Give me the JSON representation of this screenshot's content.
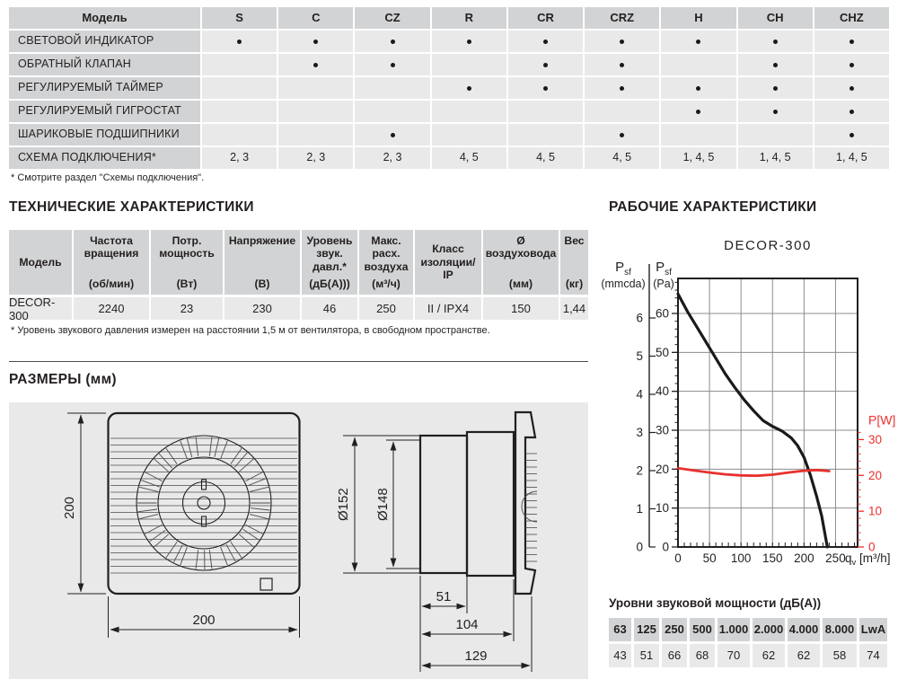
{
  "features_table": {
    "model_header": "Модель",
    "columns": [
      "S",
      "C",
      "CZ",
      "R",
      "CR",
      "CRZ",
      "H",
      "CH",
      "CHZ"
    ],
    "rows": [
      {
        "label": "СВЕТОВОЙ ИНДИКАТОР",
        "cells": [
          "•",
          "•",
          "•",
          "•",
          "•",
          "•",
          "•",
          "•",
          "•"
        ]
      },
      {
        "label": "ОБРАТНЫЙ КЛАПАН",
        "cells": [
          "",
          "•",
          "•",
          "",
          "•",
          "•",
          "",
          "•",
          "•"
        ]
      },
      {
        "label": "РЕГУЛИРУЕМЫЙ ТАЙМЕР",
        "cells": [
          "",
          "",
          "",
          "•",
          "•",
          "•",
          "•",
          "•",
          "•"
        ]
      },
      {
        "label": "РЕГУЛИРУЕМЫЙ ГИГРОСТАТ",
        "cells": [
          "",
          "",
          "",
          "",
          "",
          "",
          "•",
          "•",
          "•"
        ]
      },
      {
        "label": "ШАРИКОВЫЕ ПОДШИПНИКИ",
        "cells": [
          "",
          "",
          "•",
          "",
          "",
          "•",
          "",
          "",
          "•"
        ]
      },
      {
        "label": "СХЕМА ПОДКЛЮЧЕНИЯ*",
        "cells": [
          "2, 3",
          "2, 3",
          "2, 3",
          "4, 5",
          "4, 5",
          "4, 5",
          "1, 4, 5",
          "1, 4, 5",
          "1, 4, 5"
        ]
      }
    ],
    "footnote": "* Смотрите раздел \"Схемы подключения\"."
  },
  "tech": {
    "title": "ТЕХНИЧЕСКИЕ ХАРАКТЕРИСТИКИ",
    "headers": [
      {
        "name": "Модель",
        "unit": ""
      },
      {
        "name": "Частота вращения",
        "unit": "(об/мин)"
      },
      {
        "name": "Потр. мощность",
        "unit": "(Вт)"
      },
      {
        "name": "Напряжение",
        "unit": "(В)"
      },
      {
        "name": "Уровень звук. давл.*",
        "unit": "(дБ(А)))"
      },
      {
        "name": "Макс. расх. воздуха",
        "unit": "(м³/ч)"
      },
      {
        "name": "Класс изоляции/ IP",
        "unit": ""
      },
      {
        "name": "Ø воздуховода",
        "unit": "(мм)"
      },
      {
        "name": "Вес",
        "unit": "(кг)"
      }
    ],
    "row": [
      "DECOR-300",
      "2240",
      "23",
      "230",
      "46",
      "250",
      "II / IPX4",
      "150",
      "1,44"
    ],
    "footnote": "* Уровень звукового давления измерен на расстоянии 1,5 м от вентилятора, в свободном пространстве."
  },
  "dimensions": {
    "title": "РАЗМЕРЫ (мм)",
    "labels": {
      "height": "200",
      "width": "200",
      "d_outer": "Ø152",
      "d_inner": "Ø148",
      "depth1": "51",
      "depth2": "104",
      "depth3": "129"
    }
  },
  "performance": {
    "title": "РАБОЧИЕ ХАРАКТЕРИСТИКИ",
    "sound_title": "Уровни звуковой мощности (дБ(А))",
    "sound_freqs": [
      "63",
      "125",
      "250",
      "500",
      "1.000",
      "2.000",
      "4.000",
      "8.000",
      "LwA"
    ],
    "sound_values": [
      "43",
      "51",
      "66",
      "68",
      "70",
      "62",
      "62",
      "58",
      "74"
    ]
  },
  "chart_data": {
    "type": "line",
    "title": "DECOR-300",
    "colors": {
      "pressure": "#1a1a1a",
      "power": "#e8312e",
      "grid": "#8c8c8c",
      "axis": "#231f20"
    },
    "x_axis": {
      "label_main": "q",
      "label_sub": "v",
      "label_unit": "[m³/h]",
      "min": 0,
      "max": 285,
      "major_ticks": [
        0,
        50,
        100,
        150,
        200,
        250
      ],
      "minor_step": 10
    },
    "y_left_outer": {
      "label_main": "P",
      "label_sub": "sf",
      "label_unit": "(mmcda)",
      "ticks": [
        0,
        1,
        2,
        3,
        4,
        5,
        6
      ],
      "pa_per_unit": 9.807
    },
    "y_left": {
      "label_main": "P",
      "label_sub": "sf",
      "label_unit": "(Pa)",
      "min": 0,
      "max": 69,
      "major_ticks": [
        0,
        10,
        20,
        30,
        40,
        50,
        60
      ],
      "minor_step": 2
    },
    "y_right": {
      "label": "P[W]",
      "min": 0,
      "max": 75,
      "major_ticks": [
        0,
        10,
        20,
        30
      ],
      "minor_max": 32,
      "minor_step": 2
    },
    "series": [
      {
        "name": "pressure",
        "axis": "left",
        "unit": "Pa",
        "points": [
          [
            0,
            65
          ],
          [
            15,
            60.5
          ],
          [
            30,
            56.5
          ],
          [
            45,
            52.5
          ],
          [
            60,
            48.5
          ],
          [
            75,
            44.5
          ],
          [
            90,
            41
          ],
          [
            105,
            37.8
          ],
          [
            120,
            35
          ],
          [
            135,
            32.5
          ],
          [
            150,
            31
          ],
          [
            165,
            29.8
          ],
          [
            180,
            28
          ],
          [
            190,
            26
          ],
          [
            200,
            23
          ],
          [
            210,
            18.5
          ],
          [
            220,
            13
          ],
          [
            228,
            8
          ],
          [
            237,
            0
          ]
        ]
      },
      {
        "name": "power",
        "axis": "right",
        "unit": "W",
        "points": [
          [
            0,
            22
          ],
          [
            25,
            21.4
          ],
          [
            50,
            20.8
          ],
          [
            75,
            20.3
          ],
          [
            100,
            20
          ],
          [
            125,
            19.9
          ],
          [
            150,
            20.2
          ],
          [
            175,
            20.8
          ],
          [
            200,
            21.3
          ],
          [
            220,
            21.5
          ],
          [
            240,
            21.2
          ]
        ]
      }
    ]
  }
}
